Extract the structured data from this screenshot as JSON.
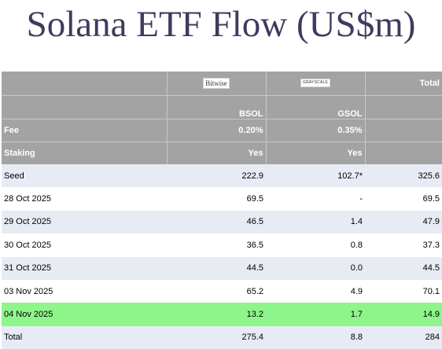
{
  "title": "Solana ETF Flow (US$m)",
  "colors": {
    "header_bg": "#a3a3a3",
    "band_bg": "#e7ebf4",
    "highlight_bg": "#8ef58a",
    "title_color": "#3c3c5e"
  },
  "header": {
    "issuers": [
      {
        "logo_text": "Bitwise",
        "logo_icon": "bitwise-logo"
      },
      {
        "logo_text": "GRAYSCALE",
        "logo_icon": "grayscale-logo"
      }
    ],
    "total_label": "Total",
    "tickers": [
      "BSOL",
      "GSOL"
    ],
    "fee": {
      "label": "Fee",
      "values": [
        "0.20%",
        "0.35%"
      ]
    },
    "staking": {
      "label": "Staking",
      "values": [
        "Yes",
        "Yes"
      ]
    }
  },
  "rows": [
    {
      "label": "Seed",
      "bsol": "222.9",
      "gsol": "102.7*",
      "total": "325.6"
    },
    {
      "label": "28 Oct 2025",
      "bsol": "69.5",
      "gsol": "-",
      "total": "69.5"
    },
    {
      "label": "29 Oct 2025",
      "bsol": "46.5",
      "gsol": "1.4",
      "total": "47.9"
    },
    {
      "label": "30 Oct 2025",
      "bsol": "36.5",
      "gsol": "0.8",
      "total": "37.3"
    },
    {
      "label": "31 Oct 2025",
      "bsol": "44.5",
      "gsol": "0.0",
      "total": "44.5"
    },
    {
      "label": "03 Nov 2025",
      "bsol": "65.2",
      "gsol": "4.9",
      "total": "70.1"
    },
    {
      "label": "04 Nov 2025",
      "bsol": "13.2",
      "gsol": "1.7",
      "total": "14.9"
    },
    {
      "label": "Total",
      "bsol": "275.4",
      "gsol": "8.8",
      "total": "284"
    }
  ]
}
